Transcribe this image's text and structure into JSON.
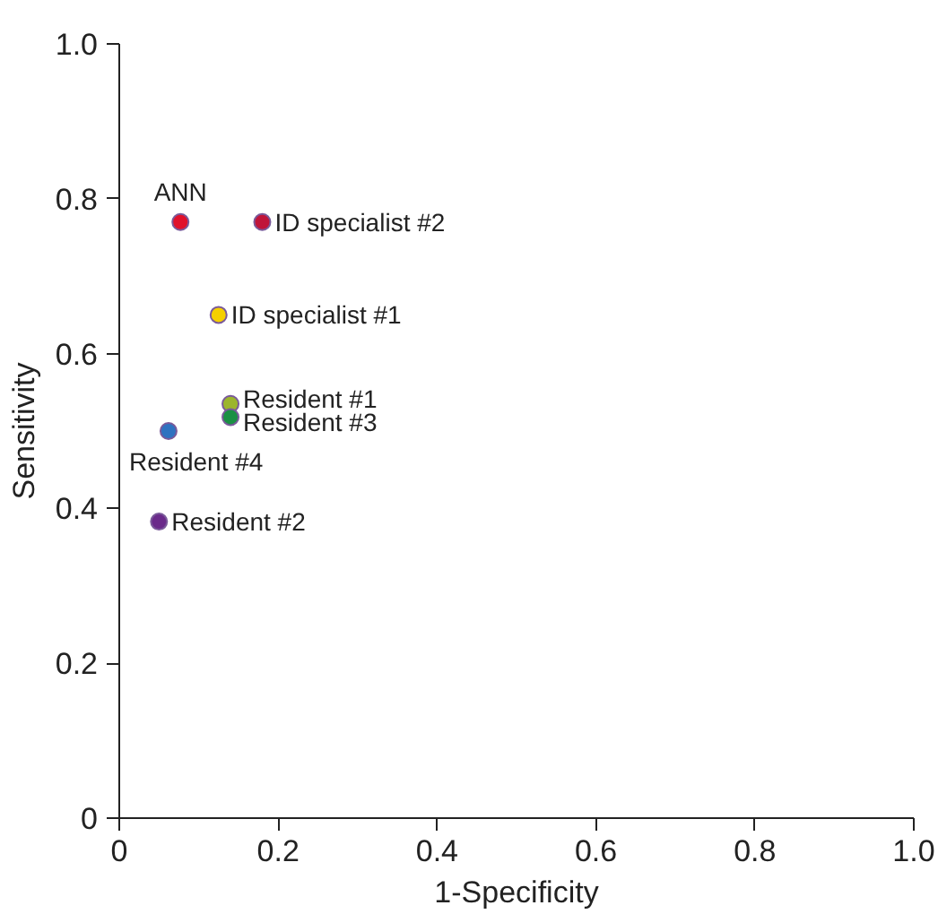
{
  "chart_data": {
    "type": "scatter",
    "xlabel": "1-Specificity",
    "ylabel": "Sensitivity",
    "xlim": [
      0,
      1
    ],
    "ylim": [
      0,
      1
    ],
    "xticks": [
      0,
      0.2,
      0.4,
      0.6,
      0.8,
      {
        "value": 1,
        "label": "1.0"
      }
    ],
    "yticks": [
      0,
      0.2,
      0.4,
      0.6,
      0.8,
      {
        "value": 1,
        "label": "1.0"
      }
    ],
    "grid": false,
    "marker": "circle",
    "series": [
      {
        "name": "ANN",
        "color": "#e0112b",
        "x": [
          0.077
        ],
        "values": [
          0.77
        ]
      },
      {
        "name": "ID specialist #2",
        "color": "#c0153a",
        "x": [
          0.18
        ],
        "values": [
          0.77
        ]
      },
      {
        "name": "ID specialist #1",
        "color": "#f5d000",
        "x": [
          0.125
        ],
        "values": [
          0.65
        ]
      },
      {
        "name": "Resident #1",
        "color": "#9cb52c",
        "x": [
          0.14
        ],
        "values": [
          0.535
        ]
      },
      {
        "name": "Resident #3",
        "color": "#1a9044",
        "x": [
          0.14
        ],
        "values": [
          0.518
        ]
      },
      {
        "name": "Resident #4",
        "color": "#2f72c0",
        "x": [
          0.062
        ],
        "values": [
          0.5
        ]
      },
      {
        "name": "Resident #2",
        "color": "#6a2a8a",
        "x": [
          0.05
        ],
        "values": [
          0.383
        ]
      }
    ]
  }
}
